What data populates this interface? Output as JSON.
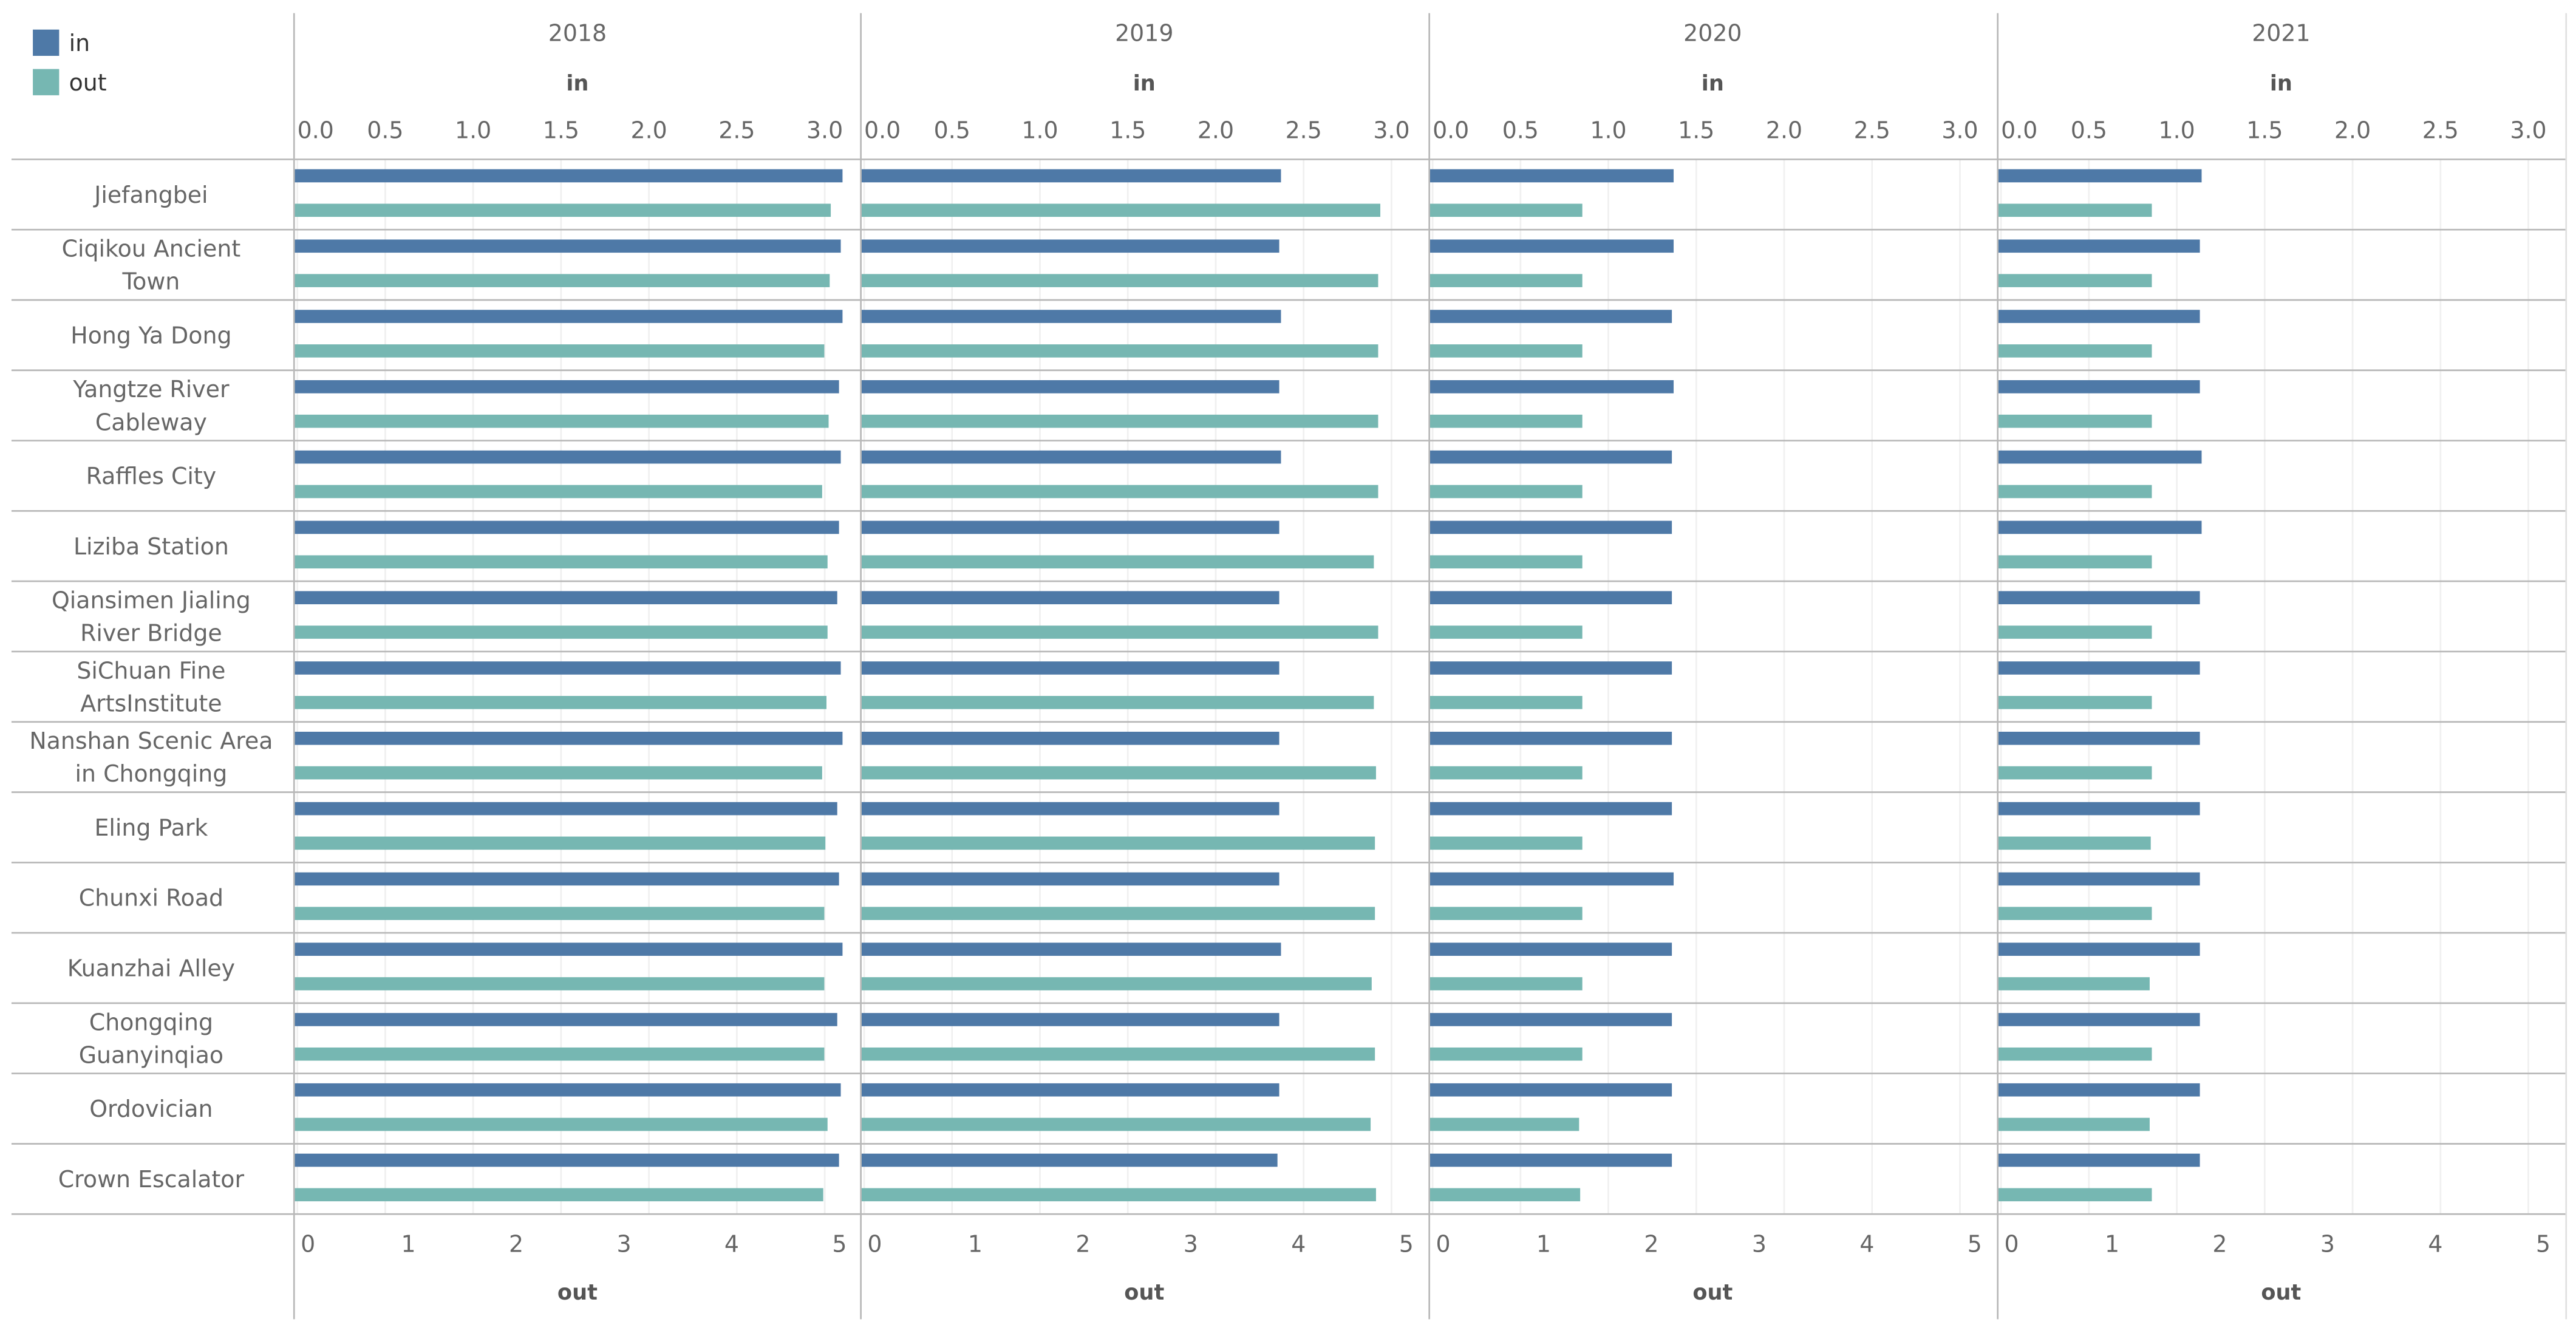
{
  "legend": {
    "items": [
      {
        "label": "in",
        "color": "#4e79a7"
      },
      {
        "label": "out",
        "color": "#76b7b2"
      }
    ]
  },
  "chart_data": {
    "type": "bar",
    "orientation": "horizontal",
    "facet_by": "year",
    "panels": [
      "2018",
      "2019",
      "2020",
      "2021"
    ],
    "top_axis": {
      "label": "in",
      "range": [
        0,
        3.2
      ],
      "ticks": [
        "0.0",
        "0.5",
        "1.0",
        "1.5",
        "2.0",
        "2.5",
        "3.0"
      ]
    },
    "bottom_axis": {
      "label": "out",
      "range": [
        0,
        5.1
      ],
      "ticks": [
        "0",
        "1",
        "2",
        "3",
        "4",
        "5"
      ]
    },
    "categories": [
      "Jiefangbei",
      "Ciqikou Ancient Town",
      "Hong Ya Dong",
      "Yangtze River Cableway",
      "Raffles City",
      "Liziba Station",
      "Qiansimen Jialing River Bridge",
      "SiChuan Fine ArtsInstitute",
      "Nanshan Scenic Area in Chongqing",
      "Eling Park",
      "Chunxi Road",
      "Kuanzhai Alley",
      "Chongqing Guanyinqiao",
      "Ordovician",
      "Crown Escalator"
    ],
    "series": [
      {
        "name": "in",
        "color": "#4e79a7",
        "values": {
          "2018": [
            3.12,
            3.11,
            3.12,
            3.1,
            3.11,
            3.1,
            3.09,
            3.11,
            3.12,
            3.09,
            3.1,
            3.12,
            3.09,
            3.11,
            3.1
          ],
          "2019": [
            2.39,
            2.38,
            2.39,
            2.38,
            2.39,
            2.38,
            2.38,
            2.38,
            2.38,
            2.38,
            2.38,
            2.39,
            2.38,
            2.38,
            2.37
          ],
          "2020": [
            1.39,
            1.39,
            1.38,
            1.39,
            1.38,
            1.38,
            1.38,
            1.38,
            1.38,
            1.38,
            1.39,
            1.38,
            1.38,
            1.38,
            1.38
          ],
          "2021": [
            1.16,
            1.15,
            1.15,
            1.15,
            1.16,
            1.16,
            1.15,
            1.15,
            1.15,
            1.15,
            1.15,
            1.15,
            1.15,
            1.15,
            1.15
          ]
        }
      },
      {
        "name": "out",
        "color": "#76b7b2",
        "values": {
          "2018": [
            4.98,
            4.97,
            4.92,
            4.96,
            4.9,
            4.95,
            4.95,
            4.94,
            4.9,
            4.93,
            4.92,
            4.92,
            4.92,
            4.95,
            4.91
          ],
          "2019": [
            4.82,
            4.8,
            4.8,
            4.8,
            4.8,
            4.76,
            4.8,
            4.76,
            4.78,
            4.77,
            4.77,
            4.74,
            4.77,
            4.73,
            4.78
          ],
          "2020": [
            1.42,
            1.42,
            1.42,
            1.42,
            1.42,
            1.42,
            1.42,
            1.42,
            1.42,
            1.42,
            1.42,
            1.42,
            1.42,
            1.39,
            1.4
          ],
          "2021": [
            1.43,
            1.43,
            1.43,
            1.43,
            1.43,
            1.43,
            1.43,
            1.43,
            1.43,
            1.42,
            1.43,
            1.41,
            1.43,
            1.41,
            1.43
          ]
        }
      }
    ]
  }
}
